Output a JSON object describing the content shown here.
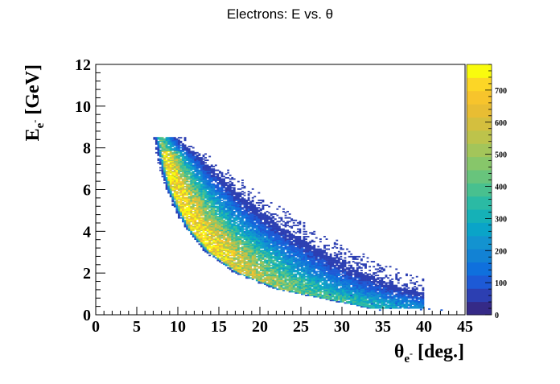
{
  "chart_data": {
    "type": "heatmap",
    "title": "Electrons: E vs.  θ",
    "xlabel": {
      "main": "θ",
      "sub": "e",
      "sup": "-",
      "unit": " [deg.]"
    },
    "ylabel": {
      "main": "E",
      "sub": "e",
      "sup": "-",
      "unit": " [GeV]"
    },
    "xlim": [
      0,
      45
    ],
    "ylim": [
      0,
      12
    ],
    "x_ticks": [
      0,
      5,
      10,
      15,
      20,
      25,
      30,
      35,
      40,
      45
    ],
    "y_ticks": [
      0,
      2,
      4,
      6,
      8,
      10,
      12
    ],
    "colorbar": {
      "min": 0,
      "max": 780,
      "ticks": [
        0,
        100,
        200,
        300,
        400,
        500,
        600,
        700
      ],
      "colors": [
        "#352a87",
        "#2c3fb2",
        "#1d5ad6",
        "#0f70dd",
        "#1282d4",
        "#1393d0",
        "#0aa4c8",
        "#15b1b7",
        "#2bbaa4",
        "#48c08f",
        "#68c47c",
        "#87c66a",
        "#a3c55a",
        "#bdc34b",
        "#d4bf3e",
        "#e8bd33",
        "#f7c42c",
        "#fcd626",
        "#f9fb0e"
      ]
    },
    "density_ridge": [
      {
        "E": 8.4,
        "theta": 7.8
      },
      {
        "E": 7.0,
        "theta": 8.6
      },
      {
        "E": 6.0,
        "theta": 9.3
      },
      {
        "E": 5.0,
        "theta": 10.4
      },
      {
        "E": 4.0,
        "theta": 11.8
      },
      {
        "E": 3.0,
        "theta": 14.0
      },
      {
        "E": 2.0,
        "theta": 17.5
      },
      {
        "E": 1.2,
        "theta": 22.5
      },
      {
        "E": 0.6,
        "theta": 30.0
      }
    ],
    "E_max": 8.5
  }
}
